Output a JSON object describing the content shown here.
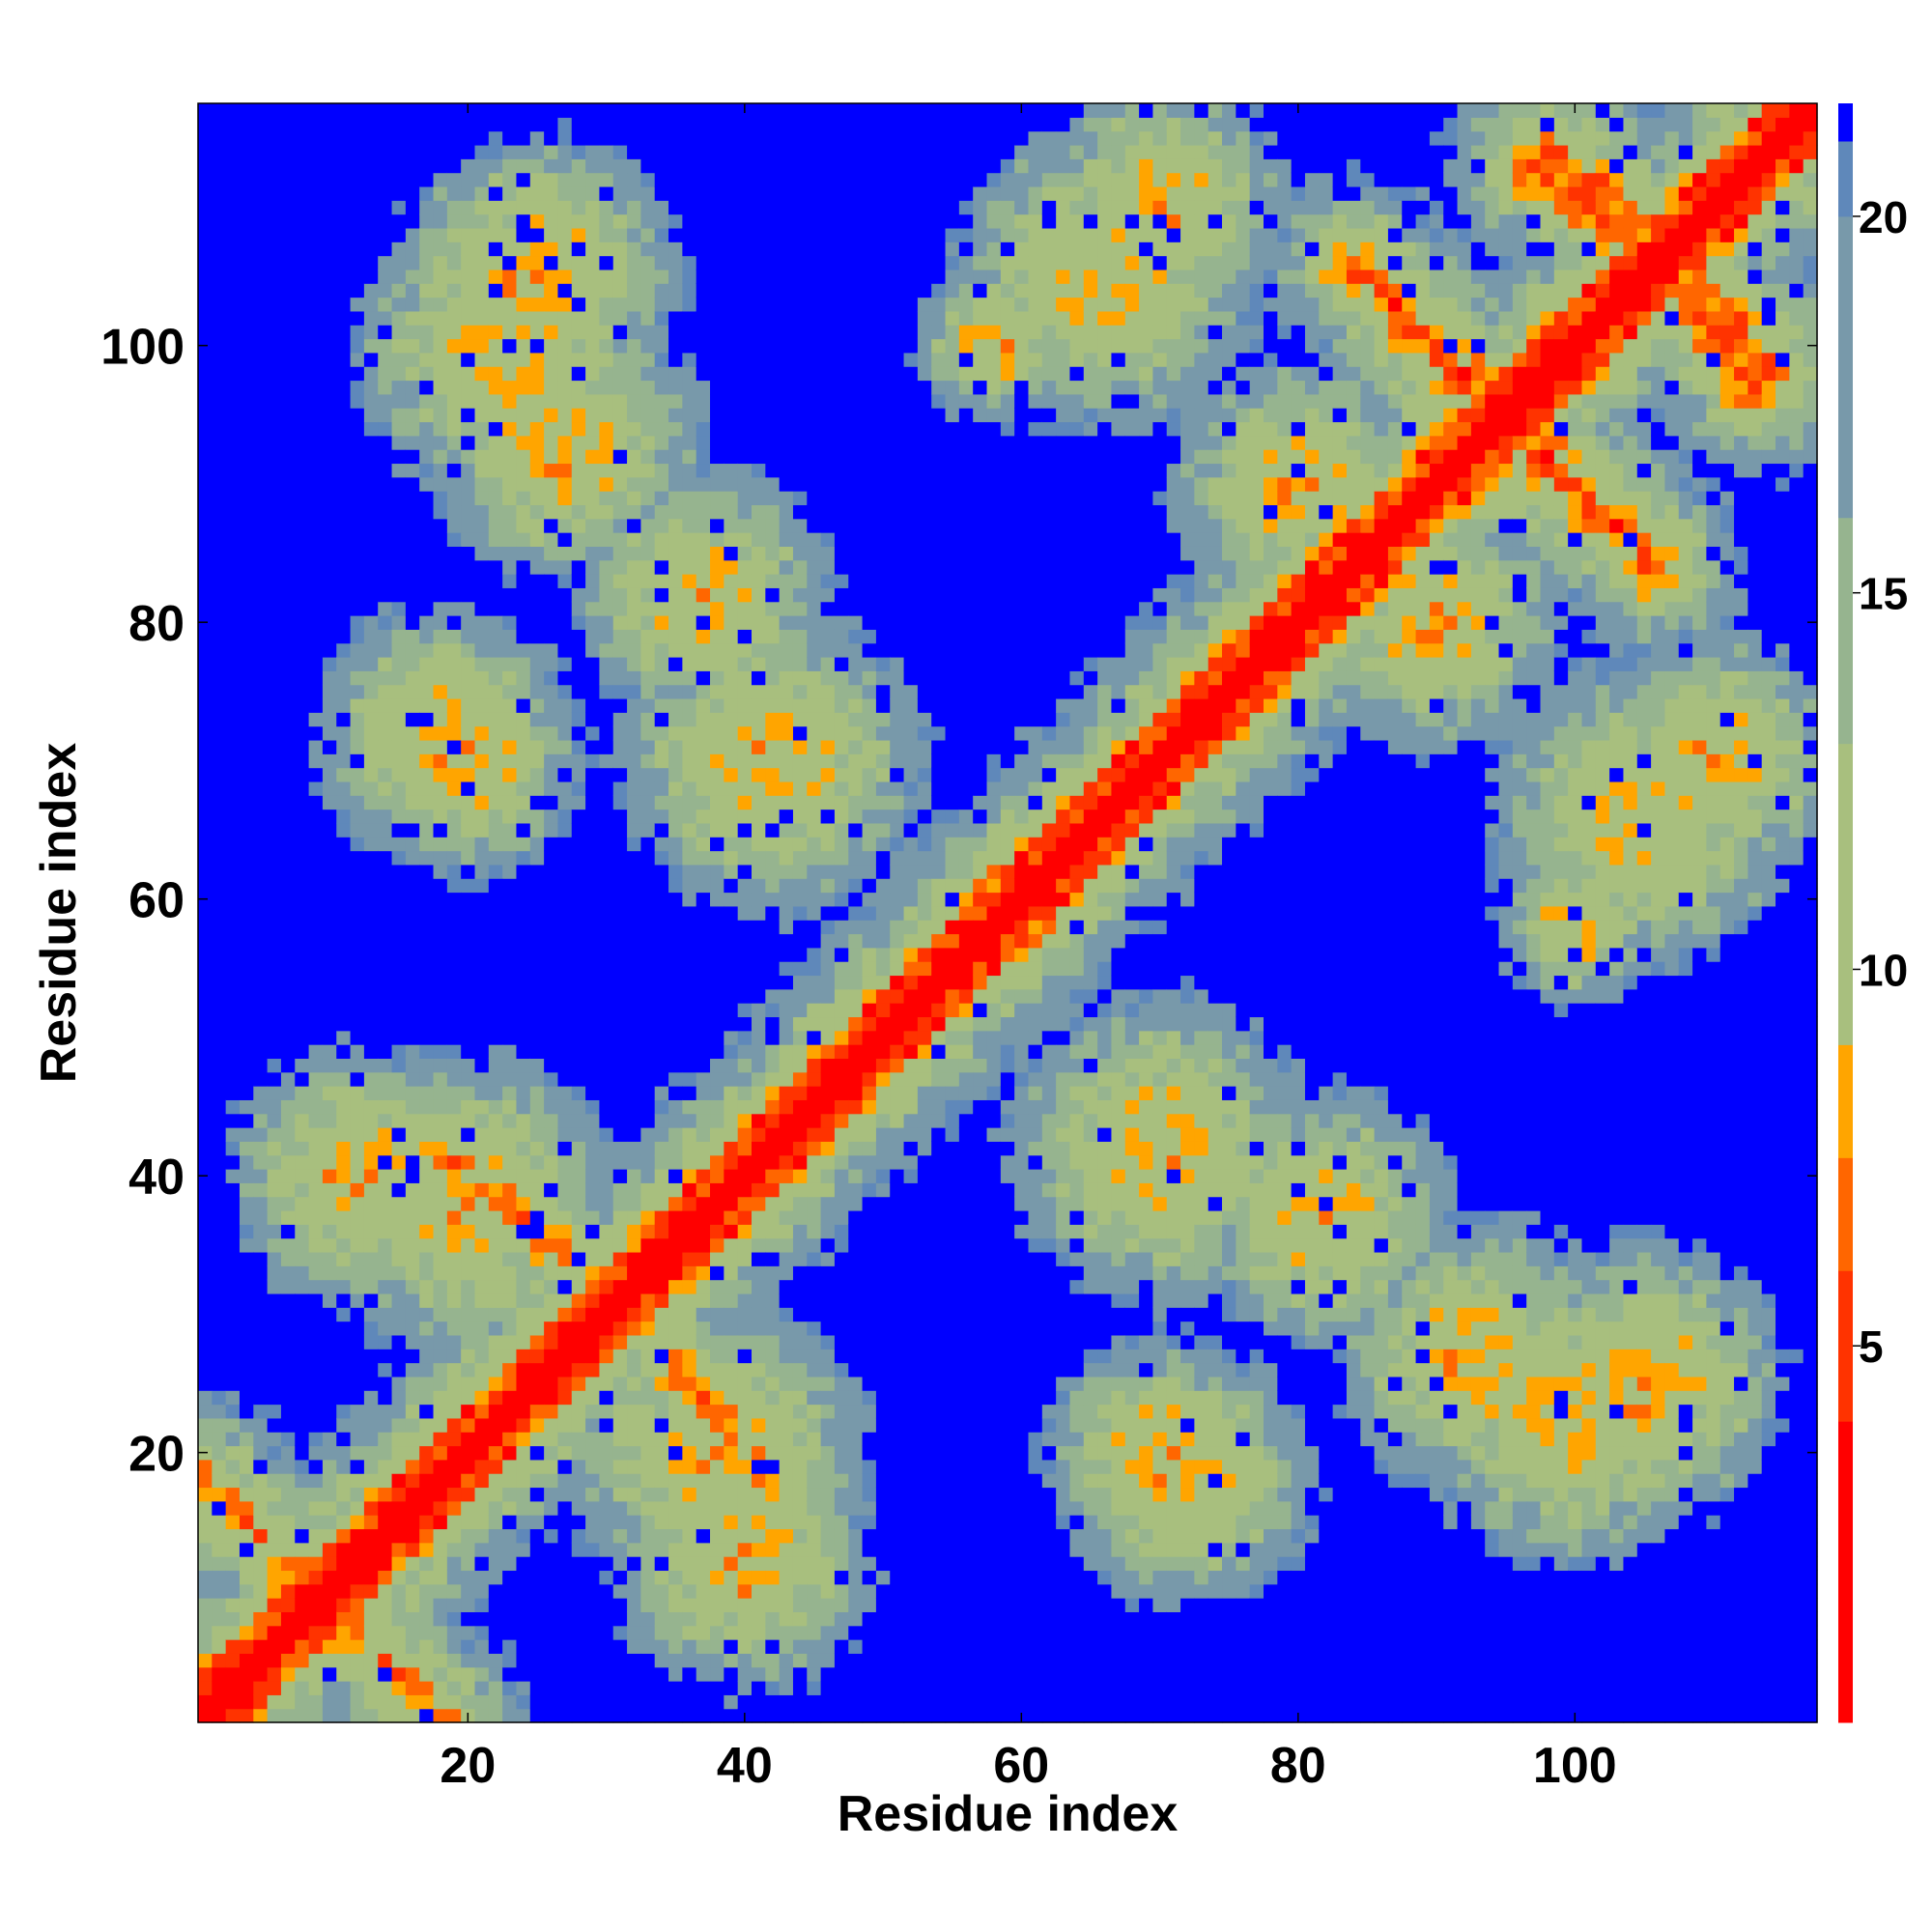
{
  "chart_data": {
    "type": "heatmap",
    "title": "",
    "xlabel": "Residue index",
    "ylabel": "Residue index",
    "n_residues": 117,
    "xlim": [
      0.5,
      117.5
    ],
    "ylim": [
      0.5,
      117.5
    ],
    "x_ticks": [
      20,
      40,
      60,
      80,
      100
    ],
    "y_ticks": [
      20,
      40,
      60,
      80,
      100
    ],
    "colorbar": {
      "ticks": [
        5,
        10,
        15,
        20
      ],
      "range": [
        0,
        21.5
      ],
      "cutoff": 21
    },
    "colorscale": [
      {
        "value": 0,
        "color": "#ff0000"
      },
      {
        "value": 4,
        "color": "#ff3300"
      },
      {
        "value": 6,
        "color": "#ff6600"
      },
      {
        "value": 7.5,
        "color": "#ffa500"
      },
      {
        "value": 9,
        "color": "#a8bf7e"
      },
      {
        "value": 13,
        "color": "#96b48f"
      },
      {
        "value": 16,
        "color": "#7899aa"
      },
      {
        "value": 20,
        "color": "#5f88ba"
      },
      {
        "value": 21,
        "color": "#0000ff"
      }
    ],
    "features": {
      "diagonal_band": {
        "description": "sequential neighbours, distance small",
        "max_offset": 3
      },
      "contact_bands": [
        {
          "from": [
            1,
            18
          ],
          "to": [
            18,
            1
          ],
          "value": 7
        },
        {
          "from": [
            18,
            42
          ],
          "to": [
            27,
            34
          ],
          "value": 7
        },
        {
          "from": [
            37,
            24
          ],
          "to": [
            42,
            18
          ],
          "value": 7
        },
        {
          "from": [
            56,
            59
          ],
          "to": [
            84,
            84
          ],
          "value": 7
        },
        {
          "from": [
            84,
            106
          ],
          "to": [
            93,
            96
          ],
          "value": 6
        },
        {
          "from": [
            97,
            113
          ],
          "to": [
            106,
            106
          ],
          "value": 6
        },
        {
          "from": [
            97,
            93
          ],
          "to": [
            104,
            86
          ],
          "value": 6
        },
        {
          "from": [
            106,
            108
          ],
          "to": [
            114,
            98
          ],
          "value": 6
        }
      ],
      "clusters": [
        {
          "center": [
            23,
            100
          ],
          "radius": 12
        },
        {
          "center": [
            37,
            82
          ],
          "radius": 10
        },
        {
          "center": [
            20,
            70
          ],
          "radius": 9
        },
        {
          "center": [
            66,
            105
          ],
          "radius": 12
        },
        {
          "center": [
            80,
            90
          ],
          "radius": 10
        },
        {
          "center": [
            20,
            38
          ],
          "radius": 12
        },
        {
          "center": [
            70,
            42
          ],
          "radius": 12
        },
        {
          "center": [
            93,
            27
          ],
          "radius": 11
        },
        {
          "center": [
            105,
            25
          ],
          "radius": 11
        },
        {
          "center": [
            72,
            18
          ],
          "radius": 10
        },
        {
          "center": [
            40,
            12
          ],
          "radius": 10
        },
        {
          "center": [
            110,
            70
          ],
          "radius": 10
        },
        {
          "center": [
            100,
            58
          ],
          "radius": 6
        }
      ]
    }
  }
}
